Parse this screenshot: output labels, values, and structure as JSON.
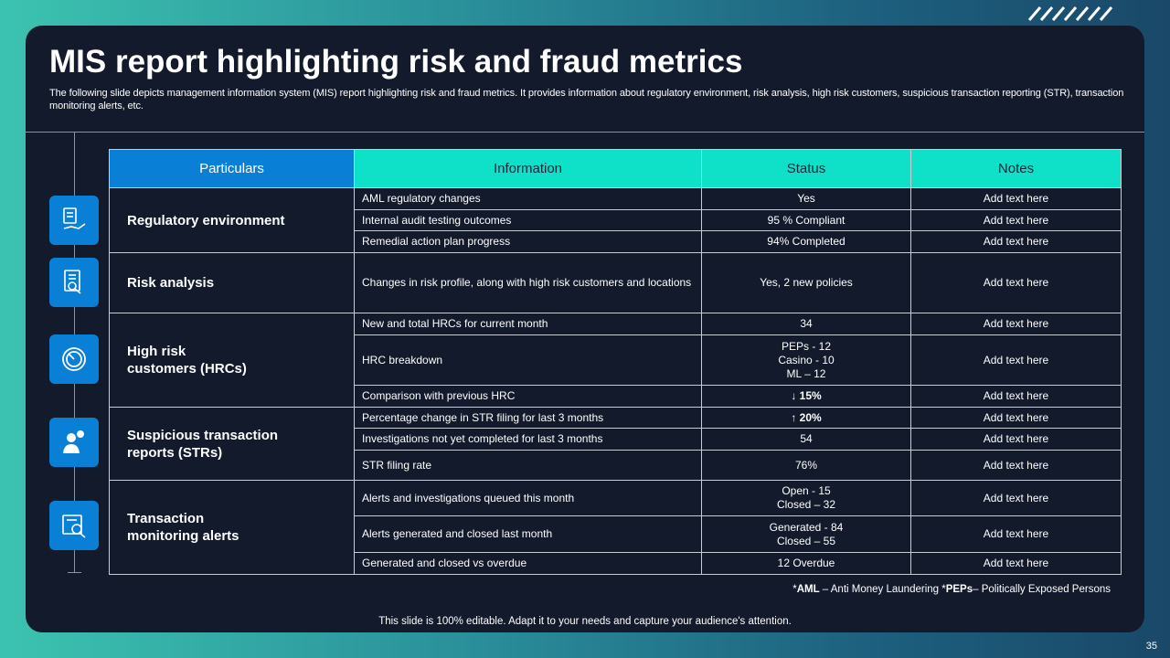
{
  "title": "MIS report highlighting risk and fraud metrics",
  "subtitle": "The following slide depicts management information system (MIS) report highlighting risk and fraud metrics. It provides information about regulatory environment, risk analysis, high risk customers, suspicious transaction reporting (STR), transaction monitoring alerts, etc.",
  "table": {
    "headers": [
      "Particulars",
      "Information",
      "Status",
      "Notes"
    ],
    "groups": [
      {
        "label": [
          "Regulatory environment"
        ],
        "rows": [
          {
            "information": "AML regulatory changes",
            "status": [
              "Yes"
            ],
            "notes": "Add text here"
          },
          {
            "information": "Internal audit testing outcomes",
            "status": [
              "95 % Compliant"
            ],
            "notes": "Add text here"
          },
          {
            "information": "Remedial action plan progress",
            "status": [
              "94% Completed"
            ],
            "notes": "Add text here"
          }
        ]
      },
      {
        "label": [
          "Risk analysis"
        ],
        "rows": [
          {
            "information": "Changes in risk profile, along with high risk customers and locations",
            "status": [
              "Yes, 2 new policies"
            ],
            "notes": "Add text here"
          }
        ]
      },
      {
        "label": [
          "High risk",
          "customers (HRCs)"
        ],
        "rows": [
          {
            "information": "New and total HRCs for current month",
            "status": [
              "34"
            ],
            "notes": "Add text here"
          },
          {
            "information": "HRC breakdown",
            "status": [
              "PEPs - 12",
              "Casino - 10",
              "ML – 12"
            ],
            "notes": "Add text here"
          },
          {
            "information": "Comparison with previous HRC",
            "status": [
              "↓ 15%"
            ],
            "notes": "Add text here"
          }
        ]
      },
      {
        "label": [
          "Suspicious transaction",
          "reports (STRs)"
        ],
        "rows": [
          {
            "information": "Percentage change in STR filing for last 3 months",
            "status": [
              "↑ 20%"
            ],
            "notes": "Add text here"
          },
          {
            "information": "Investigations not yet completed for last 3 months",
            "status": [
              "54"
            ],
            "notes": "Add text here"
          },
          {
            "information": "STR filing rate",
            "status": [
              "76%"
            ],
            "notes": "Add text here"
          }
        ]
      },
      {
        "label": [
          "Transaction",
          "monitoring alerts"
        ],
        "rows": [
          {
            "information": "Alerts and investigations queued this month",
            "status": [
              "Open - 15",
              "Closed – 32"
            ],
            "notes": "Add text here"
          },
          {
            "information": "Alerts generated and closed last month",
            "status": [
              "Generated - 84",
              "Closed – 55"
            ],
            "notes": "Add text here"
          },
          {
            "information": "Generated and closed vs overdue",
            "status": [
              "12 Overdue"
            ],
            "notes": "Add text here"
          }
        ]
      }
    ]
  },
  "footnote": [
    "*",
    "AML",
    " – Anti Money Laundering *",
    "PEPs",
    "– Politically Exposed Persons"
  ],
  "footer": "This slide is 100% editable. Adapt it to your needs and capture your audience's attention.",
  "page_number": "35"
}
